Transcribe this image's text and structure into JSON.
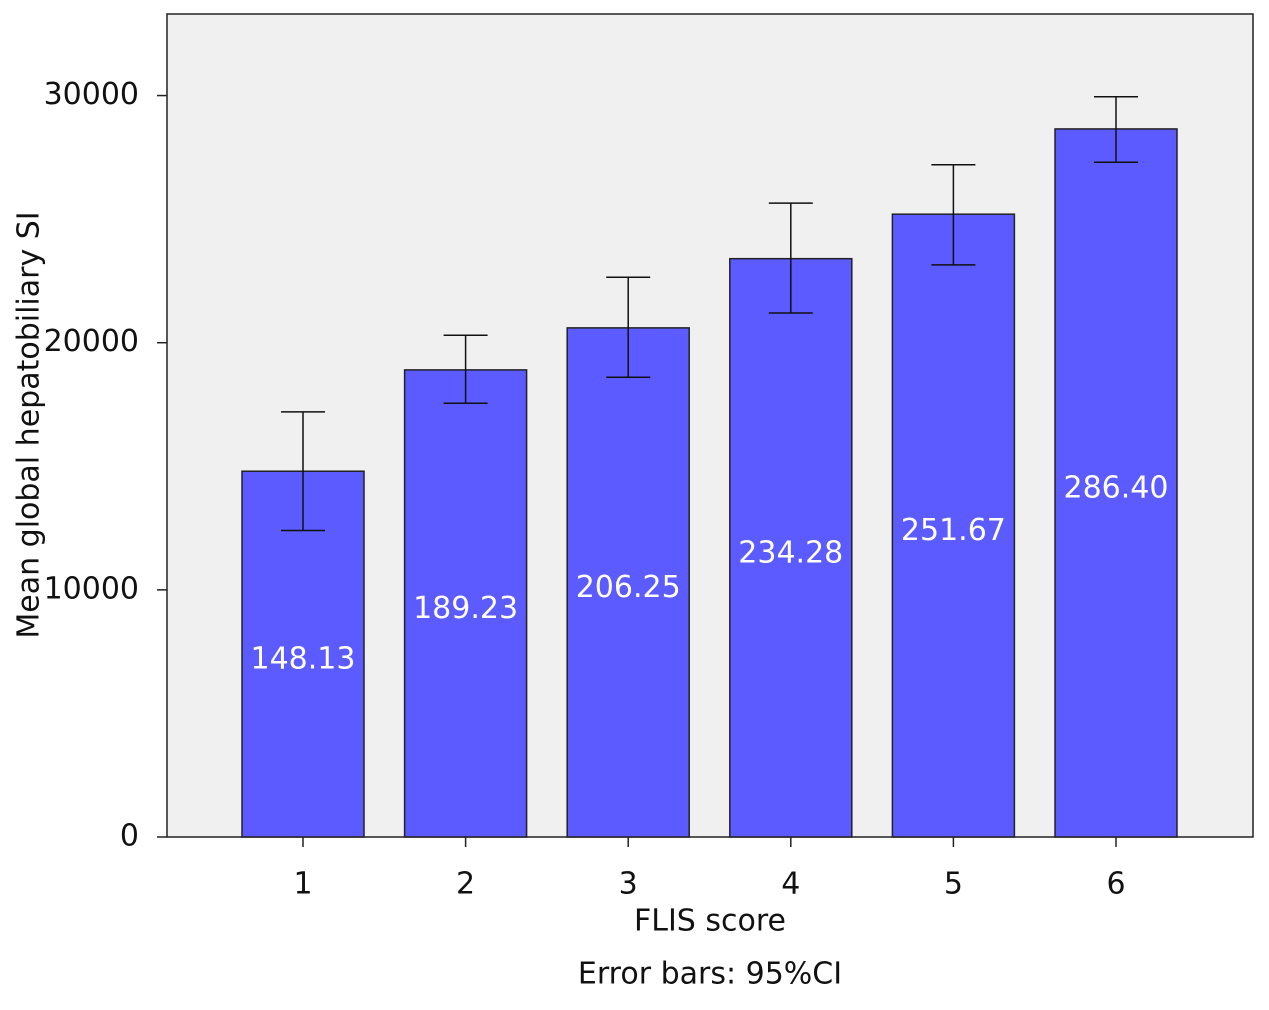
{
  "chart_data": {
    "type": "bar",
    "x_label": "FLIS score",
    "y_label": "Mean global hepatobiliary SI",
    "footnote": "Error bars: 95%CI",
    "categories": [
      "1",
      "2",
      "3",
      "4",
      "5",
      "6"
    ],
    "series": [
      {
        "color": "#5b5bff",
        "values": [
          14800,
          18900,
          20600,
          23400,
          25200,
          28650
        ],
        "error_low": [
          12400,
          17550,
          18600,
          21200,
          23150,
          27300
        ],
        "error_high": [
          17200,
          20300,
          22650,
          25650,
          27200,
          29950
        ],
        "bar_labels": [
          "148.13",
          "189.23",
          "206.25",
          "234.28",
          "251.67",
          "286.40"
        ]
      }
    ],
    "ylim": [
      0,
      33300
    ],
    "yticks": [
      0,
      10000,
      20000,
      30000
    ],
    "background": "#f0f0f0"
  }
}
